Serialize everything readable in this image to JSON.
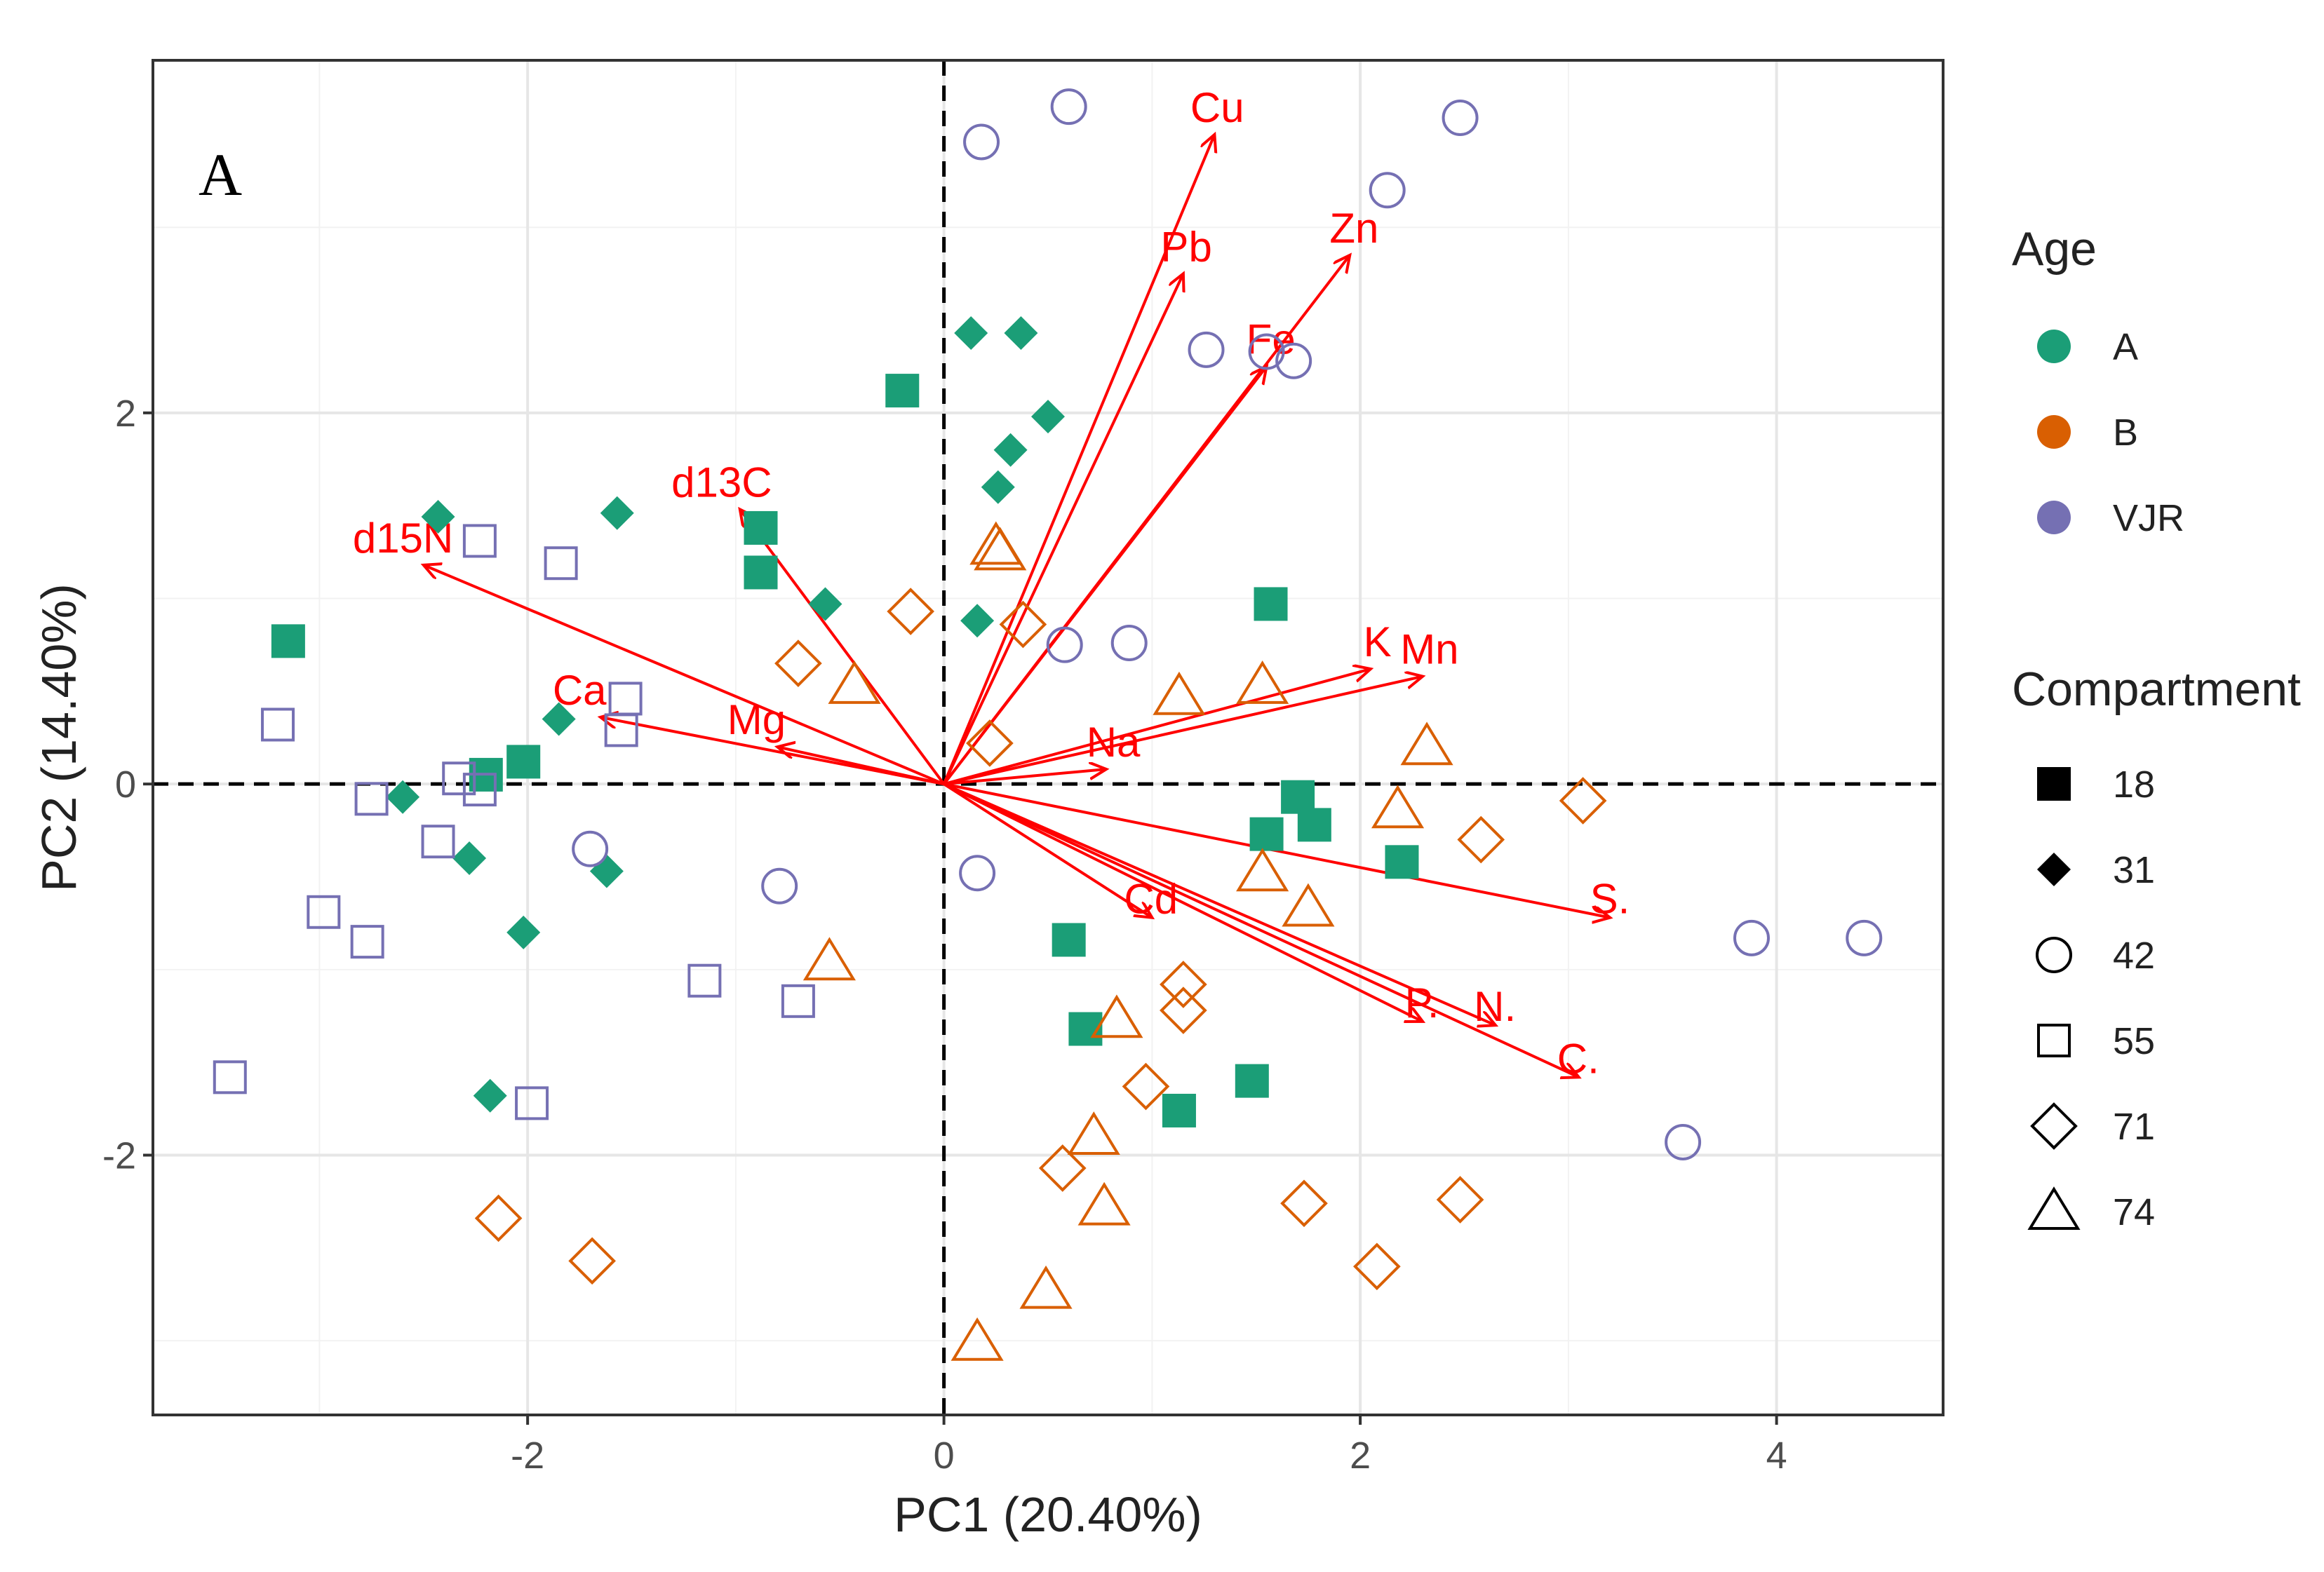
{
  "chart_data": {
    "type": "scatter",
    "panel_label": "A",
    "xlabel": "PC1 (20.40%)",
    "ylabel": "PC2 (14.40%)",
    "xlim": [
      -3.8,
      4.8
    ],
    "ylim": [
      -3.4,
      3.9
    ],
    "x_ticks": [
      -2,
      0,
      2,
      4
    ],
    "y_ticks": [
      -2,
      0,
      2
    ],
    "x_tick_labels": [
      "-2",
      "0",
      "2",
      "4"
    ],
    "y_tick_labels": [
      "-2",
      "0",
      "2"
    ],
    "grid": true,
    "reference_lines": {
      "x": 0,
      "y": 0,
      "style": "dashed"
    },
    "legend_placement": "right",
    "legend": {
      "color_title": "Age",
      "color_groups": [
        {
          "name": "A",
          "color": "#1b9e77"
        },
        {
          "name": "B",
          "color": "#d95f02"
        },
        {
          "name": "VJR",
          "color": "#7570b3"
        }
      ],
      "shape_title": "Compartment",
      "shape_groups": [
        {
          "name": "18",
          "shape": "square-filled"
        },
        {
          "name": "31",
          "shape": "diamond-filled"
        },
        {
          "name": "42",
          "shape": "circle-open"
        },
        {
          "name": "55",
          "shape": "square-open"
        },
        {
          "name": "71",
          "shape": "diamond-open"
        },
        {
          "name": "74",
          "shape": "triangle-open"
        }
      ]
    },
    "vector_color": "#ff0000",
    "vectors": [
      {
        "label": "Cu",
        "x": 1.3,
        "y": 3.5
      },
      {
        "label": "Pb",
        "x": 1.15,
        "y": 2.75
      },
      {
        "label": "Zn",
        "x": 1.95,
        "y": 2.85
      },
      {
        "label": "Fe",
        "x": 1.55,
        "y": 2.25
      },
      {
        "label": "K",
        "x": 2.05,
        "y": 0.62
      },
      {
        "label": "Mn",
        "x": 2.3,
        "y": 0.58
      },
      {
        "label": "Na",
        "x": 0.78,
        "y": 0.08
      },
      {
        "label": "d13C",
        "x": -0.98,
        "y": 1.48
      },
      {
        "label": "d15N",
        "x": -2.5,
        "y": 1.18
      },
      {
        "label": "Ca",
        "x": -1.65,
        "y": 0.36
      },
      {
        "label": "Mg",
        "x": -0.8,
        "y": 0.2
      },
      {
        "label": "Cd",
        "x": 1.0,
        "y": -0.72
      },
      {
        "label": "S.",
        "x": 3.2,
        "y": -0.72
      },
      {
        "label": "P.",
        "x": 2.3,
        "y": -1.28
      },
      {
        "label": "N.",
        "x": 2.65,
        "y": -1.3
      },
      {
        "label": "C.",
        "x": 3.05,
        "y": -1.58
      }
    ],
    "series": [
      {
        "age": "A",
        "compartment": "18",
        "points": [
          [
            -3.15,
            0.77
          ],
          [
            -0.2,
            2.12
          ],
          [
            -0.88,
            1.38
          ],
          [
            -0.88,
            1.14
          ],
          [
            -2.2,
            0.05
          ],
          [
            -2.02,
            0.12
          ],
          [
            1.57,
            0.97
          ],
          [
            1.7,
            -0.07
          ],
          [
            1.78,
            -0.22
          ],
          [
            1.55,
            -0.27
          ],
          [
            2.2,
            -0.42
          ],
          [
            0.6,
            -0.84
          ],
          [
            0.68,
            -1.32
          ],
          [
            1.13,
            -1.76
          ],
          [
            1.48,
            -1.6
          ]
        ]
      },
      {
        "age": "A",
        "compartment": "31",
        "points": [
          [
            -2.43,
            1.44
          ],
          [
            -1.57,
            1.46
          ],
          [
            0.13,
            2.43
          ],
          [
            0.37,
            2.43
          ],
          [
            0.5,
            1.98
          ],
          [
            0.32,
            1.8
          ],
          [
            0.26,
            1.6
          ],
          [
            -0.57,
            0.97
          ],
          [
            0.16,
            0.88
          ],
          [
            -1.85,
            0.35
          ],
          [
            -2.6,
            -0.07
          ],
          [
            -2.28,
            -0.4
          ],
          [
            -1.62,
            -0.47
          ],
          [
            -2.02,
            -0.8
          ],
          [
            -2.18,
            -1.68
          ]
        ]
      },
      {
        "age": "B",
        "compartment": "71",
        "points": [
          [
            -0.16,
            0.93
          ],
          [
            -0.7,
            0.65
          ],
          [
            0.38,
            0.86
          ],
          [
            0.22,
            0.22
          ],
          [
            1.15,
            -1.08
          ],
          [
            1.15,
            -1.22
          ],
          [
            0.97,
            -1.63
          ],
          [
            0.57,
            -2.07
          ],
          [
            1.73,
            -2.26
          ],
          [
            2.48,
            -2.24
          ],
          [
            2.08,
            -2.6
          ],
          [
            -2.14,
            -2.34
          ],
          [
            -1.69,
            -2.57
          ],
          [
            2.58,
            -0.3
          ],
          [
            3.07,
            -0.09
          ]
        ]
      },
      {
        "age": "B",
        "compartment": "74",
        "points": [
          [
            0.25,
            1.28
          ],
          [
            0.27,
            1.25
          ],
          [
            -0.43,
            0.53
          ],
          [
            1.13,
            0.47
          ],
          [
            1.53,
            0.53
          ],
          [
            2.32,
            0.2
          ],
          [
            2.18,
            -0.14
          ],
          [
            1.53,
            -0.48
          ],
          [
            1.75,
            -0.67
          ],
          [
            -0.55,
            -0.96
          ],
          [
            0.83,
            -1.27
          ],
          [
            0.72,
            -1.9
          ],
          [
            0.77,
            -2.28
          ],
          [
            0.49,
            -2.73
          ],
          [
            0.16,
            -3.01
          ]
        ]
      },
      {
        "age": "VJR",
        "compartment": "42",
        "points": [
          [
            0.18,
            3.46
          ],
          [
            0.6,
            3.65
          ],
          [
            2.48,
            3.59
          ],
          [
            2.13,
            3.2
          ],
          [
            1.26,
            2.34
          ],
          [
            1.55,
            2.33
          ],
          [
            1.68,
            2.28
          ],
          [
            0.58,
            0.75
          ],
          [
            0.89,
            0.76
          ],
          [
            -1.7,
            -0.35
          ],
          [
            -0.79,
            -0.55
          ],
          [
            0.16,
            -0.48
          ],
          [
            3.88,
            -0.83
          ],
          [
            4.42,
            -0.83
          ],
          [
            3.55,
            -1.93
          ]
        ]
      },
      {
        "age": "VJR",
        "compartment": "55",
        "points": [
          [
            -2.23,
            1.31
          ],
          [
            -1.84,
            1.19
          ],
          [
            -1.53,
            0.46
          ],
          [
            -1.55,
            0.29
          ],
          [
            -3.2,
            0.32
          ],
          [
            -2.75,
            -0.08
          ],
          [
            -2.33,
            0.03
          ],
          [
            -2.23,
            -0.03
          ],
          [
            -2.43,
            -0.31
          ],
          [
            -2.98,
            -0.69
          ],
          [
            -2.77,
            -0.85
          ],
          [
            -1.15,
            -1.06
          ],
          [
            -0.7,
            -1.17
          ],
          [
            -3.43,
            -1.58
          ],
          [
            -1.98,
            -1.72
          ]
        ]
      }
    ]
  }
}
